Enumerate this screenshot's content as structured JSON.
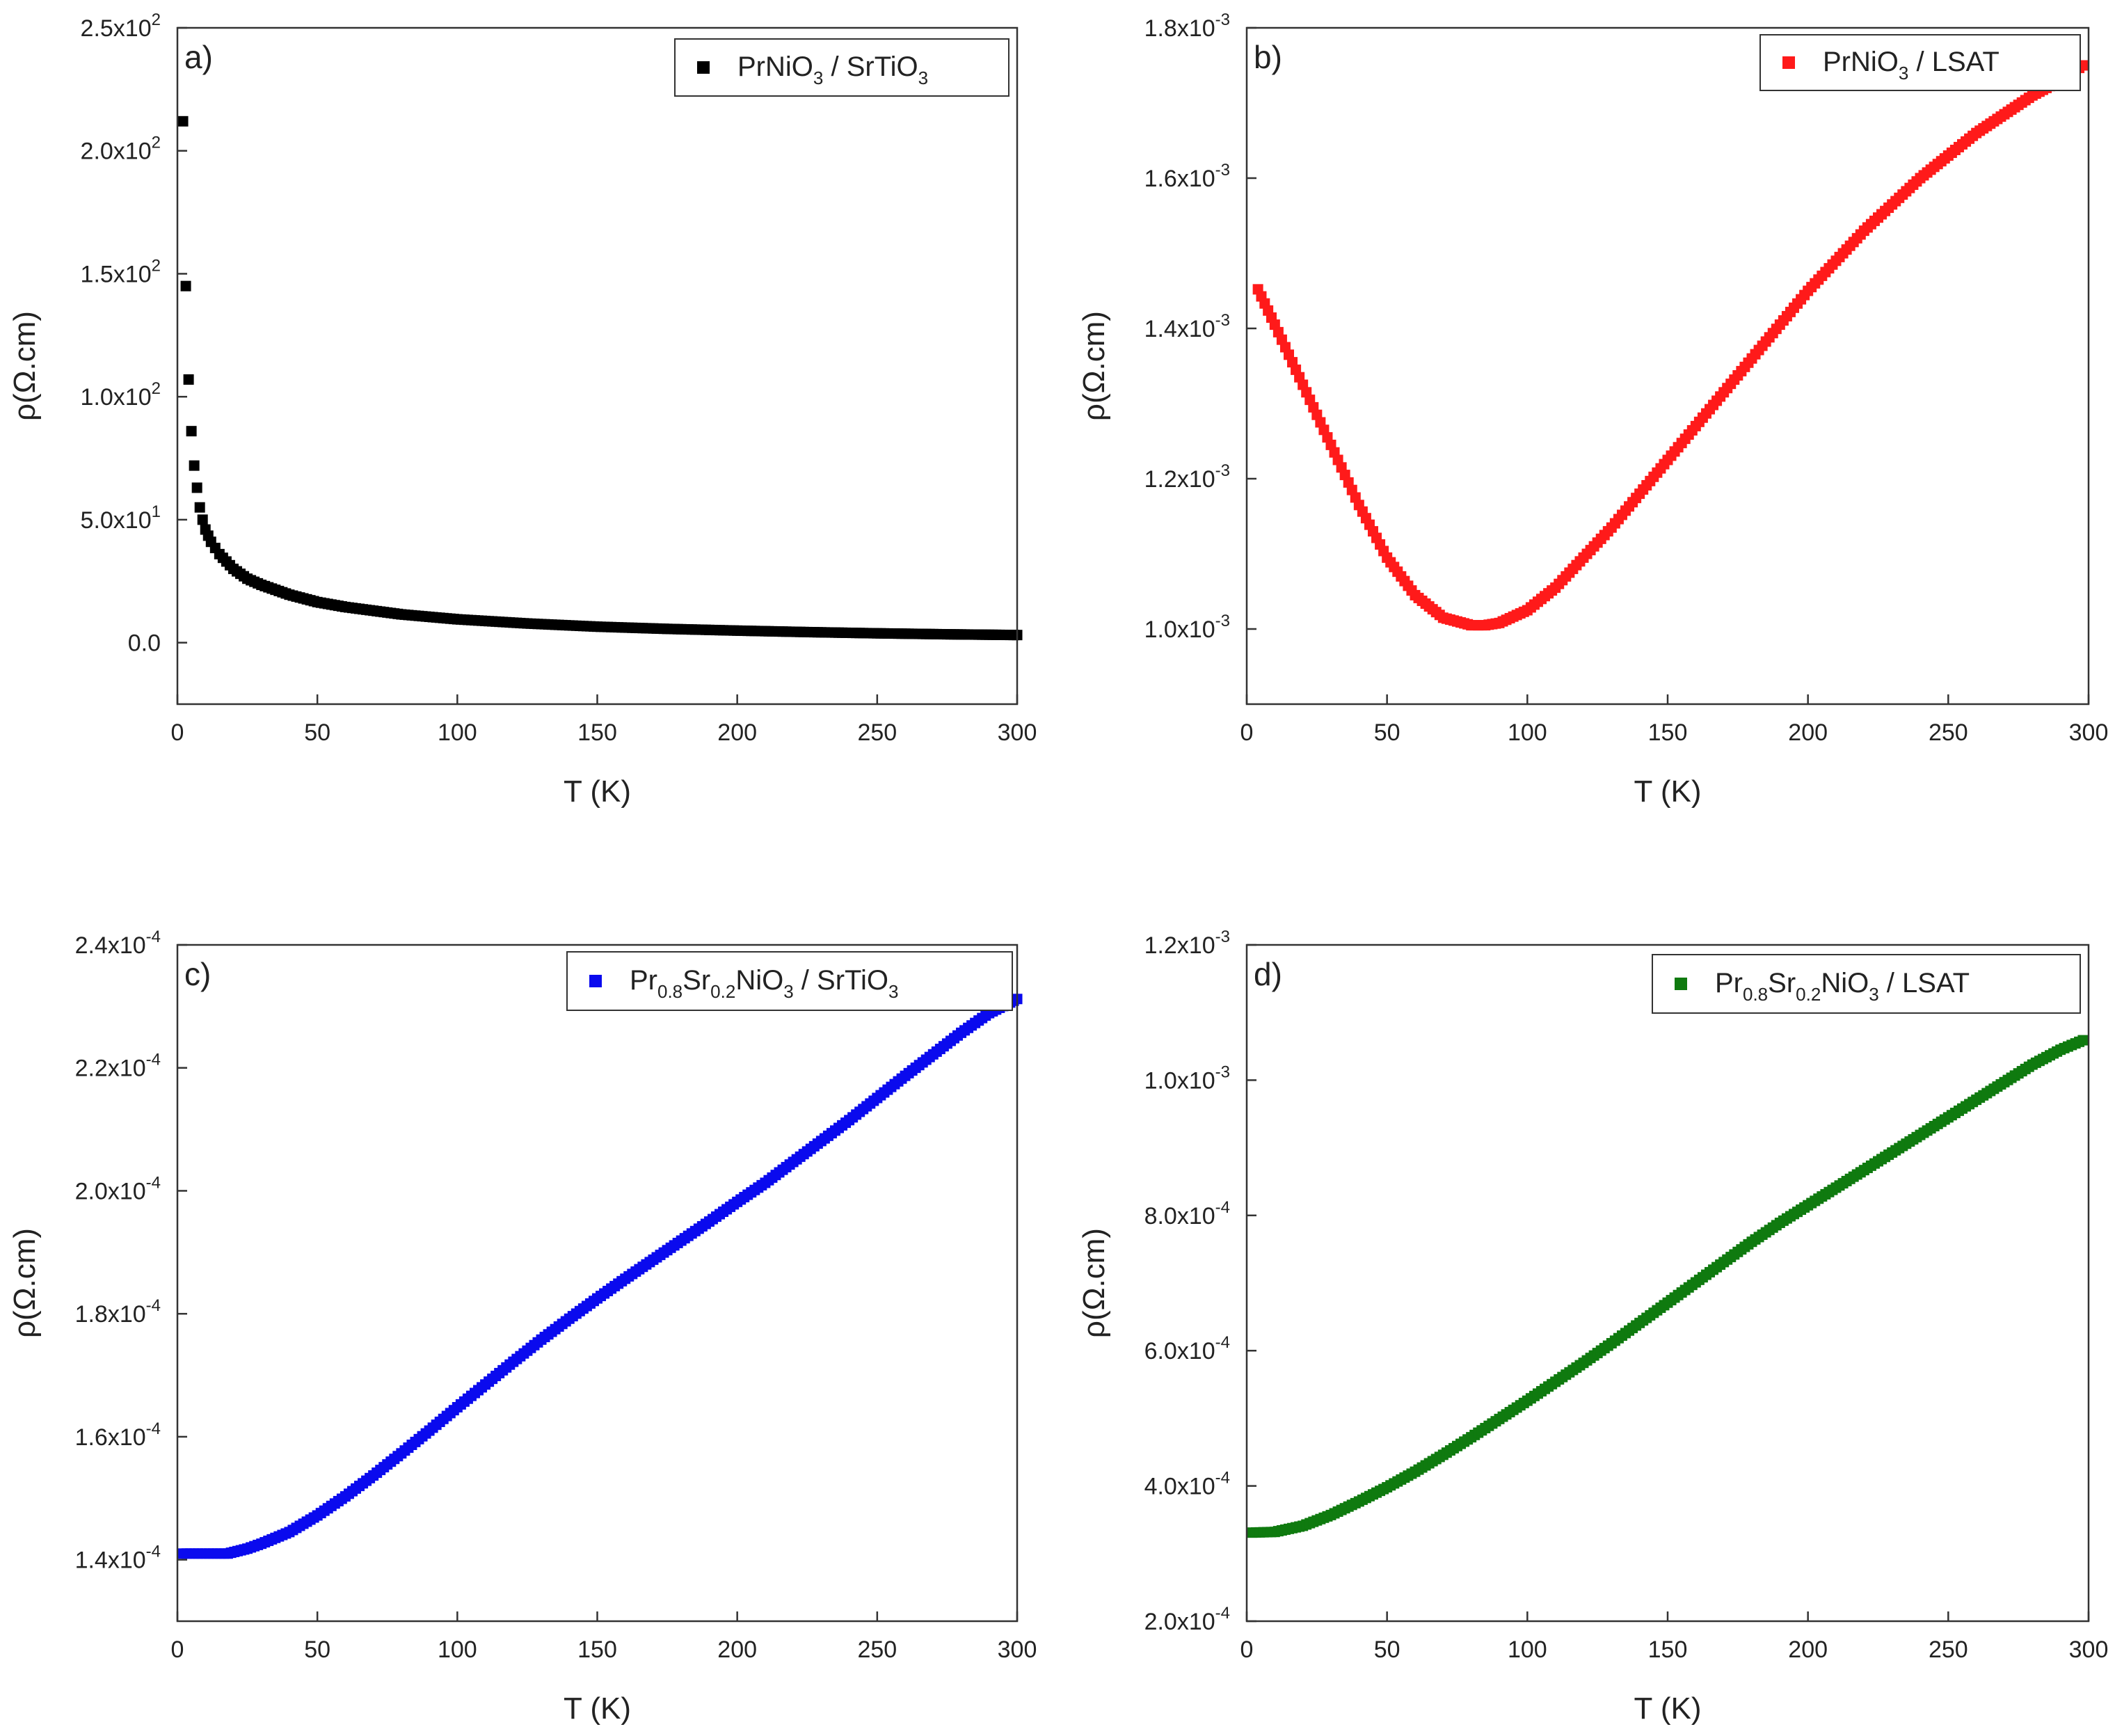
{
  "chart_data": [
    {
      "panel_label": "a)",
      "type": "scatter",
      "color": "#000000",
      "legend": {
        "formula": [
          [
            "PrNiO",
            ""
          ],
          [
            "3",
            "sub"
          ],
          [
            " / SrTiO",
            ""
          ],
          [
            "3",
            "sub"
          ]
        ],
        "position": "top-right"
      },
      "xlabel": "T (K)",
      "ylabel": "ρ(Ω.cm)",
      "xlim": [
        0,
        300
      ],
      "ylim": [
        -25,
        250
      ],
      "xticks": [
        0,
        50,
        100,
        150,
        200,
        250,
        300
      ],
      "yticks": [
        {
          "value": 0,
          "mant": "0.0",
          "exp": ""
        },
        {
          "value": 50,
          "mant": "5.0x10",
          "exp": "1"
        },
        {
          "value": 100,
          "mant": "1.0x10",
          "exp": "2"
        },
        {
          "value": 150,
          "mant": "1.5x10",
          "exp": "2"
        },
        {
          "value": 200,
          "mant": "2.0x10",
          "exp": "2"
        },
        {
          "value": 250,
          "mant": "2.5x10",
          "exp": "2"
        }
      ],
      "points": [
        [
          2,
          212
        ],
        [
          3,
          145
        ],
        [
          4,
          107
        ],
        [
          5,
          86
        ],
        [
          6,
          72
        ],
        [
          7,
          63
        ],
        [
          8,
          55
        ],
        [
          9,
          50
        ],
        [
          10,
          46
        ],
        [
          12,
          41
        ],
        [
          15,
          36
        ],
        [
          20,
          30
        ],
        [
          25,
          26
        ],
        [
          30,
          23.5
        ],
        [
          40,
          19.5
        ],
        [
          50,
          16.5
        ],
        [
          60,
          14.5
        ],
        [
          80,
          11.5
        ],
        [
          100,
          9.5
        ],
        [
          125,
          7.8
        ],
        [
          150,
          6.5
        ],
        [
          175,
          5.6
        ],
        [
          200,
          4.9
        ],
        [
          225,
          4.3
        ],
        [
          250,
          3.8
        ],
        [
          275,
          3.4
        ],
        [
          300,
          3.1
        ]
      ]
    },
    {
      "panel_label": "b)",
      "type": "scatter",
      "color": "#ff1a1a",
      "legend": {
        "formula": [
          [
            "PrNiO",
            ""
          ],
          [
            "3",
            "sub"
          ],
          [
            " / LSAT",
            ""
          ]
        ],
        "position": "top-right"
      },
      "xlabel": "T (K)",
      "ylabel": "ρ(Ω.cm)",
      "xlim": [
        0,
        300
      ],
      "ylim": [
        0.0009,
        0.0018
      ],
      "xticks": [
        0,
        50,
        100,
        150,
        200,
        250,
        300
      ],
      "yticks": [
        {
          "value": 0.001,
          "mant": "1.0x10",
          "exp": "-3"
        },
        {
          "value": 0.0012,
          "mant": "1.2x10",
          "exp": "-3"
        },
        {
          "value": 0.0014,
          "mant": "1.4x10",
          "exp": "-3"
        },
        {
          "value": 0.0016,
          "mant": "1.6x10",
          "exp": "-3"
        },
        {
          "value": 0.0018,
          "mant": "1.8x10",
          "exp": "-3"
        }
      ],
      "points": [
        [
          4,
          0.001452
        ],
        [
          10,
          0.001405
        ],
        [
          20,
          0.001325
        ],
        [
          30,
          0.001245
        ],
        [
          40,
          0.001165
        ],
        [
          50,
          0.001095
        ],
        [
          60,
          0.001045
        ],
        [
          70,
          0.001015
        ],
        [
          80,
          0.001005
        ],
        [
          85,
          0.001005
        ],
        [
          90,
          0.001008
        ],
        [
          100,
          0.001025
        ],
        [
          110,
          0.001055
        ],
        [
          120,
          0.001095
        ],
        [
          130,
          0.001135
        ],
        [
          140,
          0.00118
        ],
        [
          150,
          0.001225
        ],
        [
          160,
          0.00127
        ],
        [
          170,
          0.001315
        ],
        [
          180,
          0.00136
        ],
        [
          190,
          0.001405
        ],
        [
          200,
          0.00145
        ],
        [
          210,
          0.00149
        ],
        [
          220,
          0.00153
        ],
        [
          230,
          0.001565
        ],
        [
          240,
          0.0016
        ],
        [
          250,
          0.00163
        ],
        [
          260,
          0.00166
        ],
        [
          270,
          0.001685
        ],
        [
          280,
          0.00171
        ],
        [
          290,
          0.00173
        ],
        [
          298,
          0.00175
        ]
      ]
    },
    {
      "panel_label": "c)",
      "type": "scatter",
      "color": "#0a0aee",
      "legend": {
        "formula": [
          [
            "Pr",
            ""
          ],
          [
            "0.8",
            "sub"
          ],
          [
            "Sr",
            ""
          ],
          [
            "0.2",
            "sub"
          ],
          [
            "NiO",
            ""
          ],
          [
            "3",
            "sub"
          ],
          [
            " / SrTiO",
            ""
          ],
          [
            "3",
            "sub"
          ]
        ],
        "position": "top-right"
      },
      "xlabel": "T (K)",
      "ylabel": "ρ(Ω.cm)",
      "xlim": [
        0,
        300
      ],
      "ylim": [
        0.00013,
        0.00024
      ],
      "xticks": [
        0,
        50,
        100,
        150,
        200,
        250,
        300
      ],
      "yticks": [
        {
          "value": 0.00014,
          "mant": "1.4x10",
          "exp": "-4"
        },
        {
          "value": 0.00016,
          "mant": "1.6x10",
          "exp": "-4"
        },
        {
          "value": 0.00018,
          "mant": "1.8x10",
          "exp": "-4"
        },
        {
          "value": 0.0002,
          "mant": "2.0x10",
          "exp": "-4"
        },
        {
          "value": 0.00022,
          "mant": "2.2x10",
          "exp": "-4"
        },
        {
          "value": 0.00024,
          "mant": "2.4x10",
          "exp": "-4"
        }
      ],
      "points": [
        [
          2,
          0.000141
        ],
        [
          10,
          0.000141
        ],
        [
          18,
          0.000141
        ],
        [
          25,
          0.0001418
        ],
        [
          30,
          0.0001426
        ],
        [
          40,
          0.0001445
        ],
        [
          50,
          0.0001472
        ],
        [
          60,
          0.0001503
        ],
        [
          70,
          0.0001537
        ],
        [
          80,
          0.0001573
        ],
        [
          90,
          0.000161
        ],
        [
          100,
          0.0001648
        ],
        [
          110,
          0.0001685
        ],
        [
          120,
          0.0001722
        ],
        [
          130,
          0.0001758
        ],
        [
          140,
          0.0001792
        ],
        [
          150,
          0.0001825
        ],
        [
          160,
          0.0001857
        ],
        [
          170,
          0.0001888
        ],
        [
          180,
          0.0001919
        ],
        [
          190,
          0.000195
        ],
        [
          200,
          0.0001982
        ],
        [
          210,
          0.0002013
        ],
        [
          220,
          0.0002047
        ],
        [
          230,
          0.0002081
        ],
        [
          240,
          0.0002115
        ],
        [
          250,
          0.0002151
        ],
        [
          260,
          0.0002187
        ],
        [
          270,
          0.0002222
        ],
        [
          280,
          0.0002257
        ],
        [
          290,
          0.0002289
        ],
        [
          300,
          0.0002312
        ]
      ]
    },
    {
      "panel_label": "d)",
      "type": "scatter",
      "color": "#0f7a0f",
      "legend": {
        "formula": [
          [
            "Pr",
            ""
          ],
          [
            "0.8",
            "sub"
          ],
          [
            "Sr",
            ""
          ],
          [
            "0.2",
            "sub"
          ],
          [
            "NiO",
            ""
          ],
          [
            "3",
            "sub"
          ],
          [
            " / LSAT",
            ""
          ]
        ],
        "position": "top-right"
      },
      "xlabel": "T (K)",
      "ylabel": "ρ(Ω.cm)",
      "xlim": [
        0,
        300
      ],
      "ylim": [
        0.0002,
        0.0012
      ],
      "xticks": [
        0,
        50,
        100,
        150,
        200,
        250,
        300
      ],
      "yticks": [
        {
          "value": 0.0002,
          "mant": "2.0x10",
          "exp": "-4"
        },
        {
          "value": 0.0004,
          "mant": "4.0x10",
          "exp": "-4"
        },
        {
          "value": 0.0006,
          "mant": "6.0x10",
          "exp": "-4"
        },
        {
          "value": 0.0008,
          "mant": "8.0x10",
          "exp": "-4"
        },
        {
          "value": 0.001,
          "mant": "1.0x10",
          "exp": "-3"
        },
        {
          "value": 0.0012,
          "mant": "1.2x10",
          "exp": "-3"
        }
      ],
      "points": [
        [
          2,
          0.000331
        ],
        [
          10,
          0.000332
        ],
        [
          20,
          0.000341
        ],
        [
          30,
          0.000357
        ],
        [
          40,
          0.000377
        ],
        [
          50,
          0.000398
        ],
        [
          60,
          0.000421
        ],
        [
          70,
          0.000446
        ],
        [
          80,
          0.000472
        ],
        [
          90,
          0.000499
        ],
        [
          100,
          0.000526
        ],
        [
          110,
          0.000554
        ],
        [
          120,
          0.000582
        ],
        [
          130,
          0.000611
        ],
        [
          140,
          0.000641
        ],
        [
          150,
          0.000671
        ],
        [
          160,
          0.000701
        ],
        [
          170,
          0.000731
        ],
        [
          180,
          0.000761
        ],
        [
          190,
          0.000789
        ],
        [
          200,
          0.000815
        ],
        [
          210,
          0.000841
        ],
        [
          220,
          0.000867
        ],
        [
          230,
          0.000893
        ],
        [
          240,
          0.000919
        ],
        [
          250,
          0.000945
        ],
        [
          260,
          0.000971
        ],
        [
          270,
          0.000997
        ],
        [
          280,
          0.001023
        ],
        [
          290,
          0.001045
        ],
        [
          298,
          0.001059
        ]
      ]
    }
  ]
}
